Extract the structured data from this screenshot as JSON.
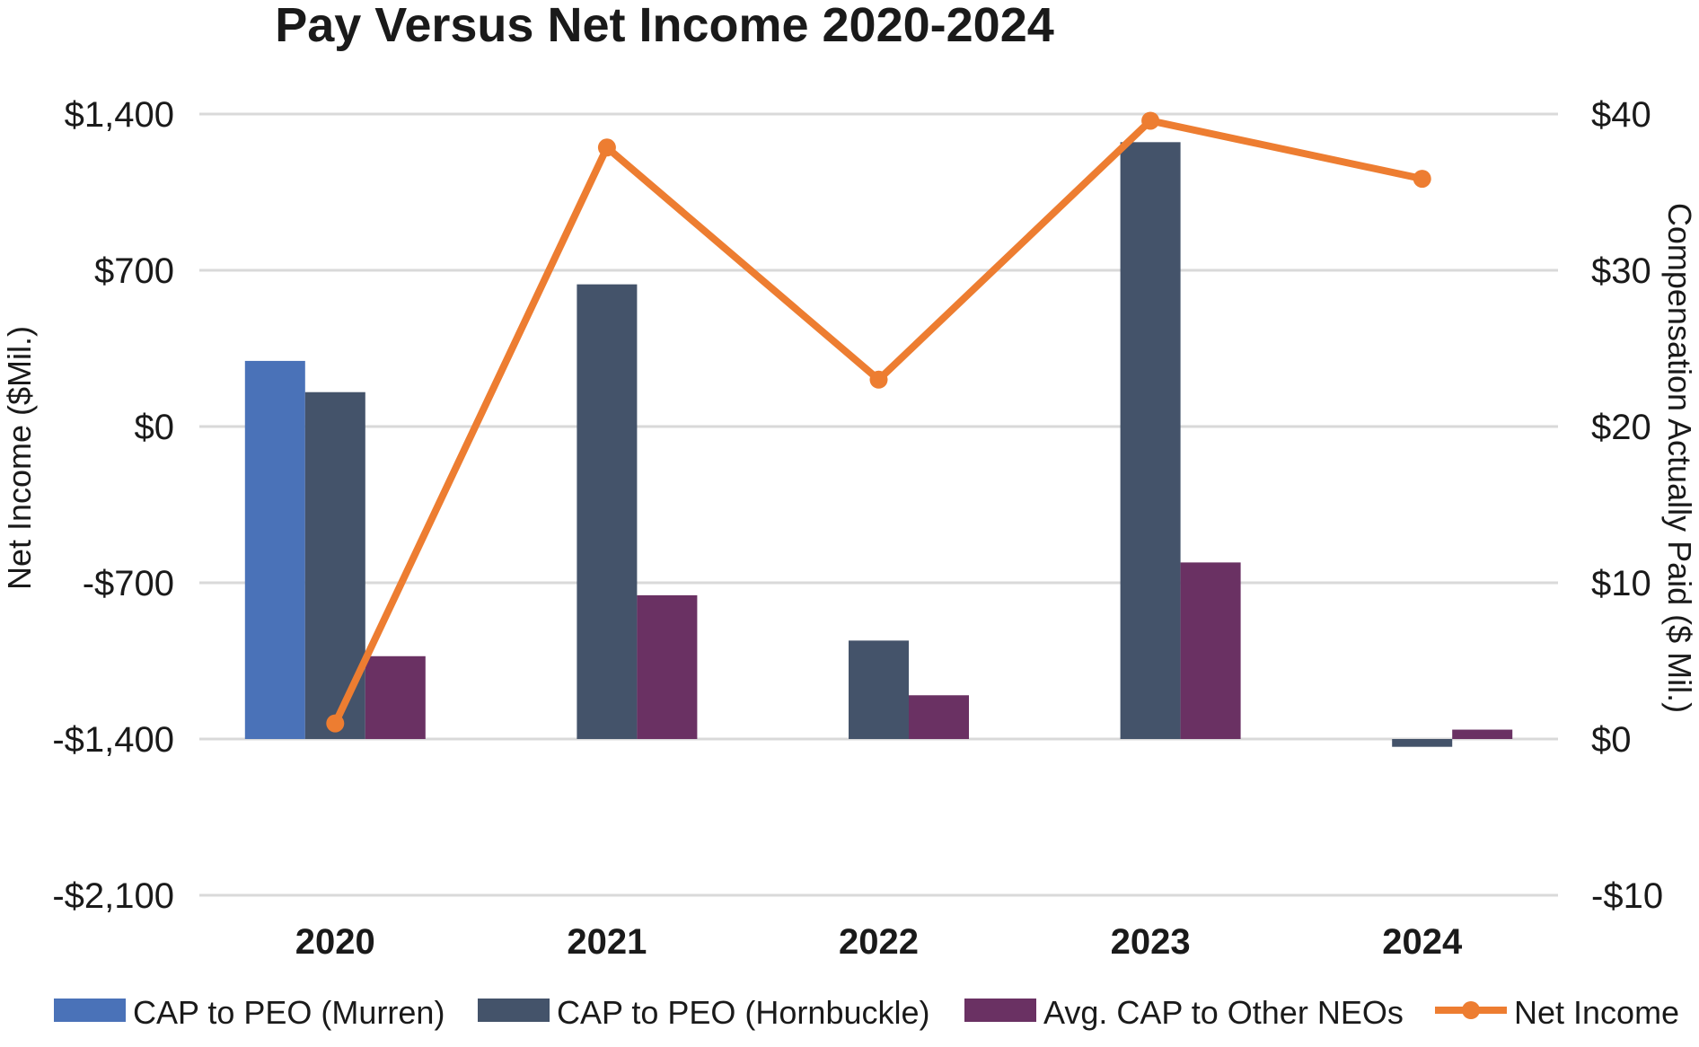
{
  "chart_data": {
    "type": "bar",
    "title": "Pay Versus Net Income 2020-2024",
    "categories": [
      "2020",
      "2021",
      "2022",
      "2023",
      "2024"
    ],
    "y_left": {
      "label": "Net Income ($Mil.)",
      "range": [
        -2100,
        1400
      ],
      "ticks": [
        1400,
        700,
        0,
        -700,
        -1400,
        -2100
      ],
      "tick_labels": [
        "$1,400",
        "$700",
        "$0",
        "-$700",
        "-$1,400",
        "-$2,100"
      ]
    },
    "y_right": {
      "label": "Compensation Actually Paid ($ Mil.)",
      "range": [
        -10,
        40
      ],
      "ticks": [
        40,
        30,
        20,
        10,
        0,
        -10
      ],
      "tick_labels": [
        "$40",
        "$30",
        "$20",
        "$10",
        "$0",
        "-$10"
      ]
    },
    "series": [
      {
        "name": "CAP to PEO (Murren)",
        "type": "bar",
        "axis": "right",
        "color": "#4A72B8",
        "values": [
          24.2,
          null,
          null,
          null,
          null
        ]
      },
      {
        "name": "CAP to PEO (Hornbuckle)",
        "type": "bar",
        "axis": "right",
        "color": "#44536A",
        "values": [
          22.2,
          29.1,
          6.3,
          38.2,
          -0.5
        ]
      },
      {
        "name": "Avg. CAP to Other NEOs",
        "type": "bar",
        "axis": "right",
        "color": "#6A3163",
        "values": [
          5.3,
          9.2,
          2.8,
          11.3,
          0.6
        ]
      },
      {
        "name": "Net Income",
        "type": "line",
        "axis": "left",
        "color": "#ED7D31",
        "values": [
          -1330,
          1250,
          210,
          1370,
          1110
        ]
      }
    ],
    "grid": true,
    "legend_position": "bottom"
  }
}
